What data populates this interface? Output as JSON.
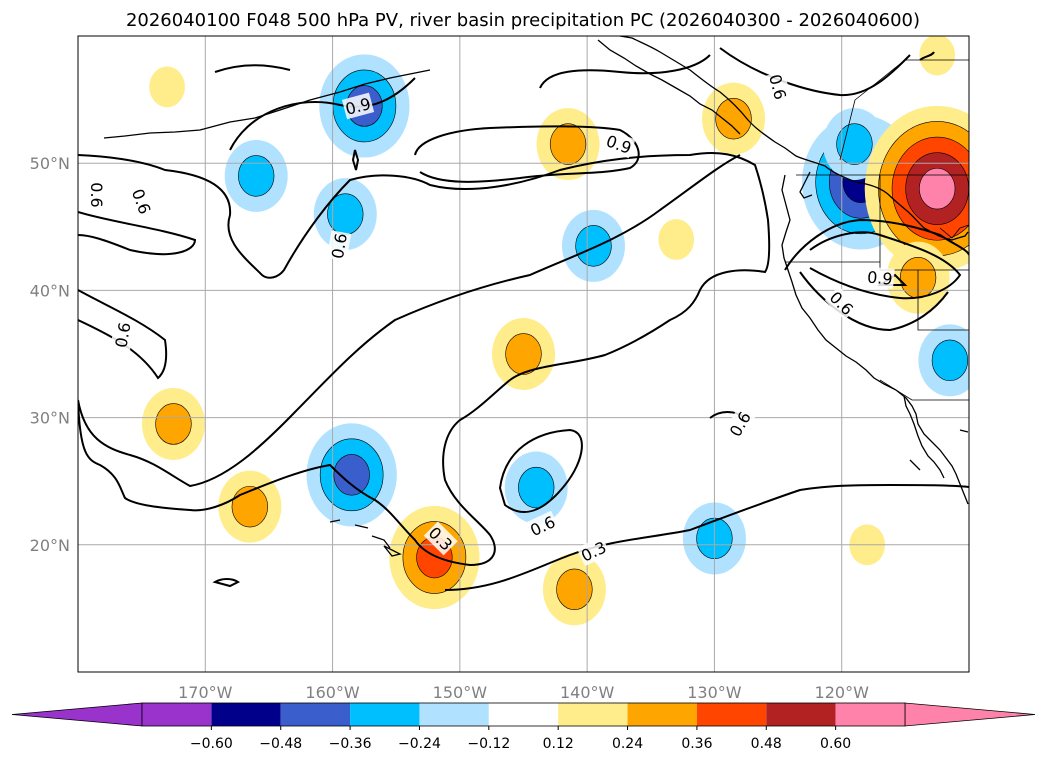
{
  "chart_data": {
    "type": "heatmap",
    "title": "2026040100 F048 500 hPa PV, river basin precipitation PC (2026040300 - 2026040600)",
    "projection": "plate-carree",
    "lon_range": [
      -180,
      -110
    ],
    "lat_range": [
      10,
      60
    ],
    "x_ticks": [
      {
        "value": -170,
        "label": "170°W"
      },
      {
        "value": -160,
        "label": "160°W"
      },
      {
        "value": -150,
        "label": "150°W"
      },
      {
        "value": -140,
        "label": "140°W"
      },
      {
        "value": -130,
        "label": "130°W"
      },
      {
        "value": -120,
        "label": "120°W"
      }
    ],
    "y_ticks": [
      {
        "value": 20,
        "label": "20°N"
      },
      {
        "value": 30,
        "label": "30°N"
      },
      {
        "value": 40,
        "label": "40°N"
      },
      {
        "value": 50,
        "label": "50°N"
      }
    ],
    "grid": true,
    "colorbar": {
      "orientation": "horizontal",
      "placement": "bottom",
      "extend": "both",
      "levels": [
        -0.72,
        -0.6,
        -0.48,
        -0.36,
        -0.24,
        -0.12,
        0.12,
        0.24,
        0.36,
        0.48,
        0.6,
        0.72
      ],
      "colors": [
        "#9933cc",
        "#00008b",
        "#3a5fcd",
        "#00bfff",
        "#b0e2ff",
        "#ffffff",
        "#ffec8b",
        "#ffa500",
        "#ff4500",
        "#b22222",
        "#ff82ab"
      ],
      "tick_values": [
        -0.6,
        -0.48,
        -0.36,
        -0.24,
        -0.12,
        0.12,
        0.24,
        0.36,
        0.48,
        0.6
      ],
      "tick_labels": [
        "−0.60",
        "−0.48",
        "−0.36",
        "−0.24",
        "−0.12",
        "0.12",
        "0.24",
        "0.36",
        "0.48",
        "0.60"
      ]
    },
    "pc_anomalies": [
      {
        "lon": -157.5,
        "lat": 54.5,
        "value": -0.45
      },
      {
        "lon": -158.5,
        "lat": 25.5,
        "value": -0.42
      },
      {
        "lon": -139.5,
        "lat": 43.5,
        "value": -0.3
      },
      {
        "lon": -144,
        "lat": 24.5,
        "value": -0.3
      },
      {
        "lon": -130,
        "lat": 20.5,
        "value": -0.28
      },
      {
        "lon": -159,
        "lat": 46,
        "value": -0.26
      },
      {
        "lon": -166,
        "lat": 49,
        "value": -0.26
      },
      {
        "lon": -118.5,
        "lat": 48.5,
        "value": -0.58
      },
      {
        "lon": -119,
        "lat": 51.5,
        "value": -0.28
      },
      {
        "lon": -111.5,
        "lat": 34.5,
        "value": -0.3
      },
      {
        "lon": -112.5,
        "lat": 48,
        "value": 0.62
      },
      {
        "lon": -114,
        "lat": 41,
        "value": 0.28
      },
      {
        "lon": -141.5,
        "lat": 51.5,
        "value": 0.28
      },
      {
        "lon": -152,
        "lat": 19,
        "value": 0.38
      },
      {
        "lon": -172.5,
        "lat": 29.5,
        "value": 0.28
      },
      {
        "lon": -166.5,
        "lat": 23,
        "value": 0.26
      },
      {
        "lon": -128.5,
        "lat": 53.5,
        "value": 0.24
      },
      {
        "lon": -141,
        "lat": 16.5,
        "value": 0.26
      },
      {
        "lon": -145,
        "lat": 35,
        "value": 0.25
      },
      {
        "lon": -133,
        "lat": 44,
        "value": 0.22
      },
      {
        "lon": -173,
        "lat": 56,
        "value": 0.22
      },
      {
        "lon": -118,
        "lat": 20,
        "value": 0.18
      },
      {
        "lon": -112.5,
        "lat": 58.5,
        "value": 0.2
      }
    ],
    "pv_contour_levels": [
      0.3,
      0.6,
      0.9
    ],
    "pv_contour_labels": [
      {
        "text": "0.9",
        "lon": -137.5,
        "lat": 51.5,
        "rotate": 20
      },
      {
        "text": "0.9",
        "lon": -158,
        "lat": 54.5,
        "rotate": -15
      },
      {
        "text": "0.6",
        "lon": -175,
        "lat": 47,
        "rotate": 70
      },
      {
        "text": "0.6",
        "lon": -178.5,
        "lat": 47.5,
        "rotate": 90
      },
      {
        "text": "0.6",
        "lon": -159.5,
        "lat": 43.5,
        "rotate": -80
      },
      {
        "text": "0.6",
        "lon": -176.5,
        "lat": 36.5,
        "rotate": -80
      },
      {
        "text": "0.6",
        "lon": -125,
        "lat": 56,
        "rotate": 75
      },
      {
        "text": "0.9",
        "lon": -117,
        "lat": 41,
        "rotate": 5
      },
      {
        "text": "0.6",
        "lon": -120,
        "lat": 39,
        "rotate": 45
      },
      {
        "text": "0.6",
        "lon": -128,
        "lat": 29.5,
        "rotate": -60
      },
      {
        "text": "0.6",
        "lon": -143.5,
        "lat": 21.5,
        "rotate": -25
      },
      {
        "text": "0.3",
        "lon": -151.5,
        "lat": 20.5,
        "rotate": 45
      },
      {
        "text": "0.3",
        "lon": -139.5,
        "lat": 19.5,
        "rotate": -25
      }
    ]
  }
}
